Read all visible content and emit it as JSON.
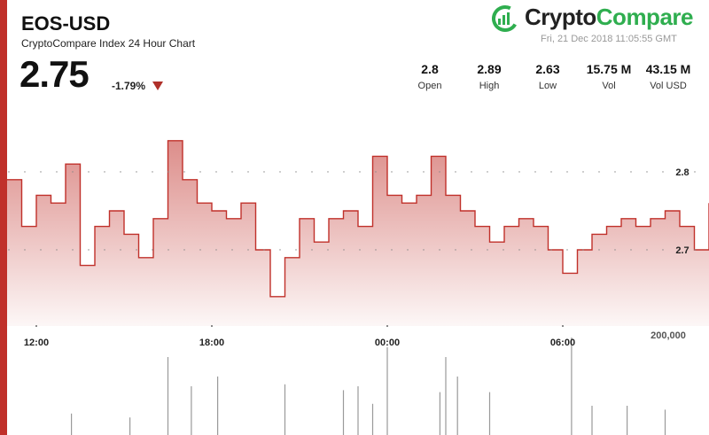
{
  "header": {
    "pair": "EOS-USD",
    "subtitle": "CryptoCompare Index 24 Hour Chart",
    "price": "2.75",
    "change": "-1.79%",
    "logo_main": "Crypto",
    "logo_accent": "Compare",
    "timestamp": "Fri, 21 Dec 2018 11:05:55 GMT"
  },
  "stats": [
    {
      "value": "2.8",
      "label": "Open"
    },
    {
      "value": "2.89",
      "label": "High"
    },
    {
      "value": "2.63",
      "label": "Low"
    },
    {
      "value": "15.75 M",
      "label": "Vol"
    },
    {
      "value": "43.15 M",
      "label": "Vol USD"
    }
  ],
  "colors": {
    "line": "#c0302a",
    "accent": "#2fae4f",
    "down": "#b0302a"
  },
  "chart_data": {
    "type": "area",
    "x_ticks": [
      "12:00",
      "18:00",
      "00:00",
      "06:00"
    ],
    "x_tick_hours": [
      1,
      7,
      13,
      19
    ],
    "y_ticks": [
      2.8,
      2.7
    ],
    "volume_tick_label": "200,000",
    "price_series": {
      "x_hours": [
        0,
        0.5,
        1,
        1.5,
        2,
        2.5,
        3,
        3.5,
        4,
        4.5,
        5,
        5.5,
        6,
        6.5,
        7,
        7.5,
        8,
        8.5,
        9,
        9.5,
        10,
        10.5,
        11,
        11.5,
        12,
        12.5,
        13,
        13.5,
        14,
        14.5,
        15,
        15.5,
        16,
        16.5,
        17,
        17.5,
        18,
        18.5,
        19,
        19.5,
        20,
        20.5,
        21,
        21.5,
        22,
        22.5,
        23,
        23.5,
        24
      ],
      "price": [
        2.79,
        2.73,
        2.77,
        2.76,
        2.81,
        2.68,
        2.73,
        2.75,
        2.72,
        2.69,
        2.74,
        2.84,
        2.79,
        2.76,
        2.75,
        2.74,
        2.76,
        2.7,
        2.64,
        2.69,
        2.74,
        2.71,
        2.74,
        2.75,
        2.73,
        2.82,
        2.77,
        2.76,
        2.77,
        2.82,
        2.77,
        2.75,
        2.73,
        2.71,
        2.73,
        2.74,
        2.73,
        2.7,
        2.67,
        2.7,
        2.72,
        2.73,
        2.74,
        2.73,
        2.74,
        2.75,
        2.73,
        2.7,
        2.76
      ]
    },
    "volume_series": {
      "x_hours": [
        2.2,
        4.2,
        5.5,
        6.3,
        7.2,
        9.5,
        11.5,
        12.0,
        12.5,
        13.0,
        14.8,
        15.0,
        15.4,
        16.5,
        19.3,
        20.0,
        21.2,
        22.5
      ],
      "volume": [
        110000,
        90000,
        400000,
        250000,
        300000,
        260000,
        230000,
        250000,
        160000,
        450000,
        220000,
        400000,
        300000,
        220000,
        500000,
        150000,
        150000,
        130000
      ]
    }
  }
}
